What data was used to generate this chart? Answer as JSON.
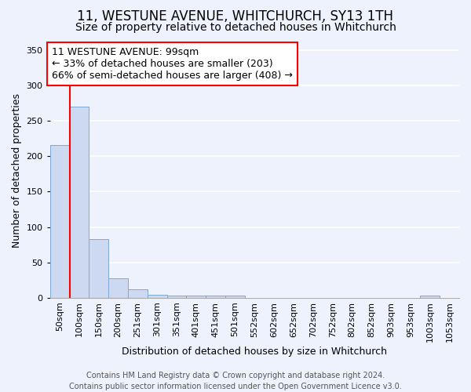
{
  "title": "11, WESTUNE AVENUE, WHITCHURCH, SY13 1TH",
  "subtitle": "Size of property relative to detached houses in Whitchurch",
  "xlabel": "Distribution of detached houses by size in Whitchurch",
  "ylabel": "Number of detached properties",
  "categories": [
    "50sqm",
    "100sqm",
    "150sqm",
    "200sqm",
    "251sqm",
    "301sqm",
    "351sqm",
    "401sqm",
    "451sqm",
    "501sqm",
    "552sqm",
    "602sqm",
    "652sqm",
    "702sqm",
    "752sqm",
    "802sqm",
    "852sqm",
    "903sqm",
    "953sqm",
    "1003sqm",
    "1053sqm"
  ],
  "values": [
    216,
    270,
    83,
    28,
    12,
    4,
    3,
    3,
    3,
    3,
    0,
    0,
    0,
    0,
    0,
    0,
    0,
    0,
    0,
    3,
    0
  ],
  "bar_color": "#ccd9f0",
  "bar_edge_color": "#7aaad4",
  "red_line_bar_index": 1,
  "annotation_text": "11 WESTUNE AVENUE: 99sqm\n← 33% of detached houses are smaller (203)\n66% of semi-detached houses are larger (408) →",
  "annotation_box_color": "white",
  "annotation_box_edge": "red",
  "ylim": [
    0,
    360
  ],
  "yticks": [
    0,
    50,
    100,
    150,
    200,
    250,
    300,
    350
  ],
  "footer_text": "Contains HM Land Registry data © Crown copyright and database right 2024.\nContains public sector information licensed under the Open Government Licence v3.0.",
  "bg_color": "#eef2fc",
  "grid_color": "#ffffff",
  "title_fontsize": 12,
  "subtitle_fontsize": 10,
  "axis_label_fontsize": 9,
  "tick_fontsize": 8,
  "footer_fontsize": 7,
  "annotation_fontsize": 9
}
